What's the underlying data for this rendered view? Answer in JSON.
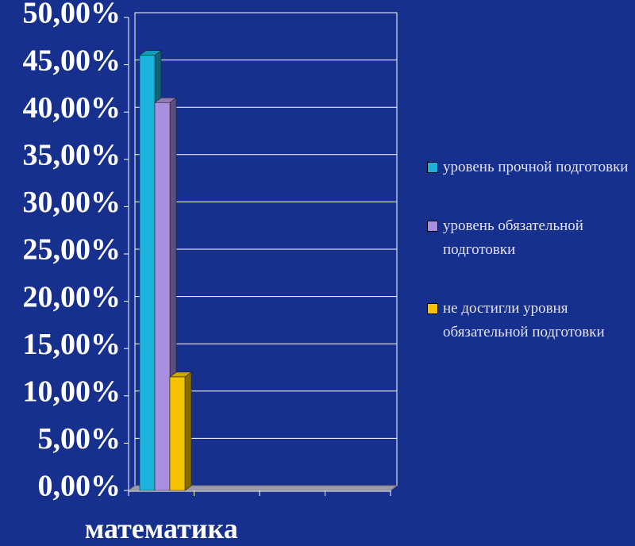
{
  "chart_data": {
    "type": "bar3d",
    "categories": [
      "математика",
      null,
      null,
      null
    ],
    "series": [
      {
        "name": "уровень прочной подготовки",
        "color": "#1bb3dc",
        "values": [
          46,
          null,
          null,
          null
        ]
      },
      {
        "name": "уровень обязательной подготовки",
        "color": "#a98fe0",
        "values": [
          41,
          null,
          null,
          null
        ]
      },
      {
        "name": "не достигли уровня обязательной подготовки",
        "color": "#f5c400",
        "values": [
          12,
          null,
          null,
          null
        ]
      }
    ],
    "ylim": [
      0,
      50
    ],
    "yticks": [
      {
        "value": 0,
        "label": "0,00%"
      },
      {
        "value": 5,
        "label": "5,00%"
      },
      {
        "value": 10,
        "label": "10,00%"
      },
      {
        "value": 15,
        "label": "15,00%"
      },
      {
        "value": 20,
        "label": "20,00%"
      },
      {
        "value": 25,
        "label": "25,00%"
      },
      {
        "value": 30,
        "label": "30,00%"
      },
      {
        "value": 35,
        "label": "35,00%"
      },
      {
        "value": 40,
        "label": "40,00%"
      },
      {
        "value": 45,
        "label": "45,00%"
      },
      {
        "value": 50,
        "label": "50,00%"
      }
    ],
    "grid": true,
    "legend": "right"
  }
}
